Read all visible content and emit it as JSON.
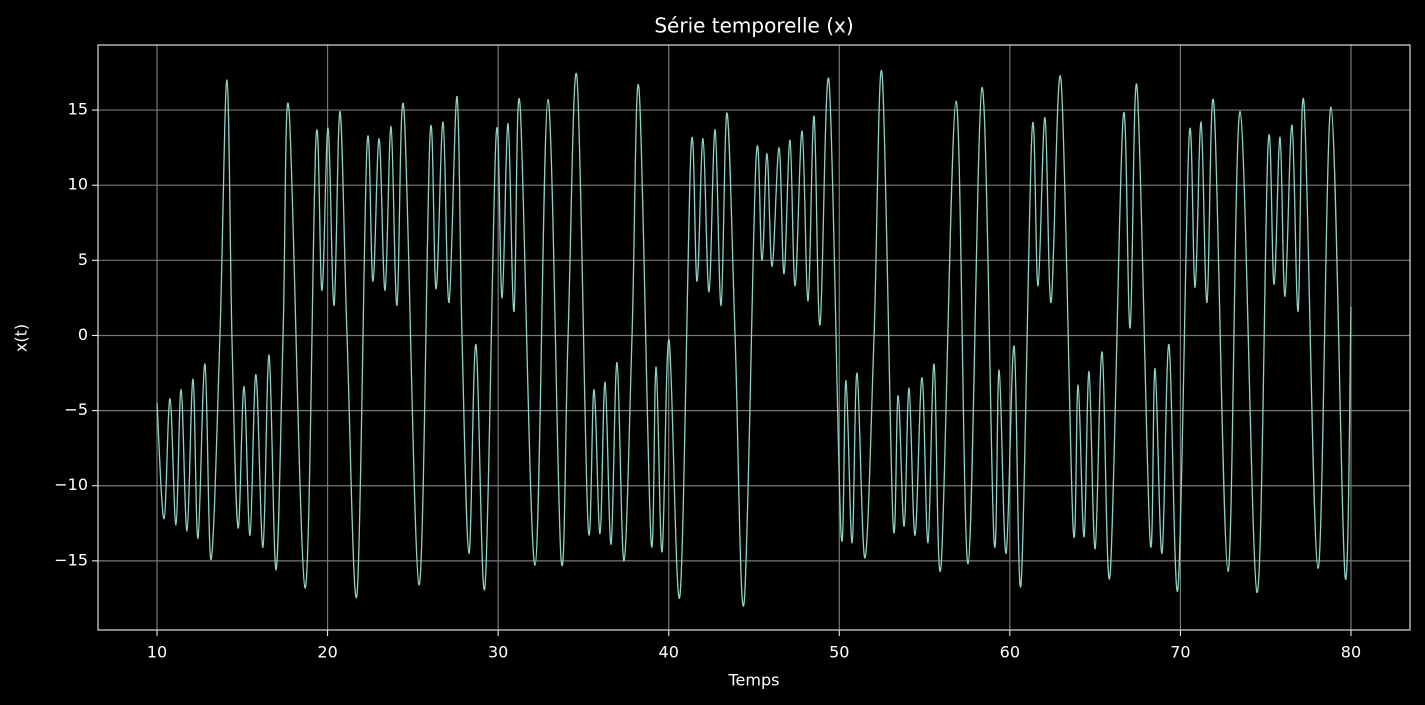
{
  "chart_data": {
    "type": "line",
    "title": "Série temporelle (x)",
    "x_label": "Temps",
    "y_label": "x(t)",
    "x": [
      10.0,
      10.41,
      10.76,
      11.11,
      11.41,
      11.76,
      12.11,
      12.4,
      12.81,
      13.17,
      13.69,
      14.1,
      14.4,
      14.75,
      15.1,
      15.45,
      15.8,
      16.21,
      16.57,
      16.98,
      17.39,
      17.74,
      18.68,
      19.32,
      19.67,
      20.03,
      20.38,
      20.73,
      21.14,
      21.73,
      22.31,
      22.66,
      23.02,
      23.37,
      23.72,
      24.07,
      24.48,
      25.36,
      26.01,
      26.36,
      26.77,
      27.12,
      27.59,
      27.88,
      28.29,
      28.7,
      29.23,
      29.88,
      30.23,
      30.58,
      30.93,
      31.28,
      32.16,
      32.92,
      33.69,
      34.1,
      34.62,
      35.27,
      35.62,
      35.97,
      36.27,
      36.62,
      36.97,
      37.38,
      37.85,
      38.26,
      38.96,
      39.26,
      39.61,
      40.02,
      40.66,
      41.31,
      41.66,
      42.01,
      42.36,
      42.72,
      43.07,
      43.42,
      43.89,
      44.42,
      45.12,
      45.47,
      45.76,
      46.06,
      46.47,
      46.76,
      47.11,
      47.41,
      47.82,
      48.17,
      48.52,
      48.87,
      49.4,
      50.1,
      50.39,
      50.75,
      51.04,
      51.51,
      52.04,
      52.51,
      53.15,
      53.45,
      53.8,
      54.09,
      54.44,
      54.85,
      55.2,
      55.56,
      55.97,
      56.85,
      57.55,
      58.37,
      59.07,
      59.37,
      59.78,
      60.25,
      60.66,
      61.3,
      61.65,
      62.06,
      62.42,
      63.0,
      63.71,
      64.0,
      64.35,
      64.64,
      65.0,
      65.41,
      65.88,
      66.64,
      67.05,
      67.46,
      68.22,
      68.51,
      68.92,
      69.33,
      69.86,
      70.51,
      70.86,
      71.21,
      71.56,
      71.97,
      72.79,
      73.5,
      74.49,
      75.14,
      75.49,
      75.84,
      76.13,
      76.54,
      76.9,
      77.25,
      78.07,
      78.83,
      79.65,
      80.0
    ],
    "series": [
      {
        "color": "#8dd3c7",
        "values": [
          -4.5,
          -12.2,
          -4.2,
          -12.6,
          -3.6,
          -13.0,
          -2.9,
          -13.5,
          -1.9,
          -14.9,
          0.0,
          17.0,
          -0.5,
          -12.8,
          -3.4,
          -13.3,
          -2.6,
          -14.1,
          -1.3,
          -15.6,
          0.0,
          15.0,
          -16.8,
          13.1,
          3.0,
          13.8,
          2.0,
          14.9,
          0.0,
          -17.2,
          12.6,
          3.6,
          13.1,
          3.0,
          13.9,
          2.0,
          15.0,
          -16.6,
          13.4,
          3.1,
          14.2,
          2.2,
          15.9,
          0.0,
          -14.5,
          -0.6,
          -16.7,
          13.3,
          2.5,
          14.1,
          1.6,
          15.4,
          -15.3,
          15.7,
          -14.9,
          0.0,
          17.2,
          -12.6,
          -3.6,
          -13.2,
          -3.1,
          -13.9,
          -1.8,
          -15.0,
          0.0,
          16.4,
          -13.6,
          -2.1,
          -14.4,
          -0.3,
          -17.3,
          12.5,
          3.6,
          13.1,
          2.9,
          13.7,
          2.0,
          14.8,
          0.0,
          -17.8,
          11.7,
          5.0,
          12.1,
          4.6,
          12.5,
          4.1,
          13.0,
          3.3,
          13.6,
          2.3,
          14.6,
          0.7,
          16.9,
          -13.1,
          -3.0,
          -13.8,
          -2.5,
          -14.8,
          0.0,
          17.4,
          -12.4,
          -4.0,
          -12.7,
          -3.5,
          -13.3,
          -2.8,
          -13.8,
          -1.9,
          -15.3,
          15.6,
          -15.2,
          16.5,
          -13.6,
          -2.3,
          -14.5,
          -0.7,
          -16.5,
          13.6,
          3.3,
          14.5,
          2.2,
          17.0,
          -12.8,
          -3.3,
          -13.4,
          -2.4,
          -14.2,
          -1.1,
          -15.9,
          14.5,
          0.5,
          16.5,
          -13.6,
          -2.2,
          -14.5,
          -0.6,
          -16.8,
          13.2,
          3.2,
          14.2,
          2.2,
          15.3,
          -15.7,
          14.9,
          -17.1,
          12.7,
          3.4,
          13.2,
          2.6,
          14.0,
          1.6,
          15.4,
          -15.5,
          15.2,
          -16.0,
          1.9
        ]
      }
    ],
    "xlim": [
      6.54,
      83.46
    ],
    "xticks": [
      10,
      20,
      30,
      40,
      50,
      60,
      70,
      80
    ],
    "ylim": [
      -19.6,
      19.33
    ],
    "yticks": [
      {
        "value": -15,
        "label": "−15"
      },
      {
        "value": -10,
        "label": "−10"
      },
      {
        "value": -5,
        "label": "−5"
      },
      0,
      5,
      10,
      15
    ],
    "grid": true
  }
}
